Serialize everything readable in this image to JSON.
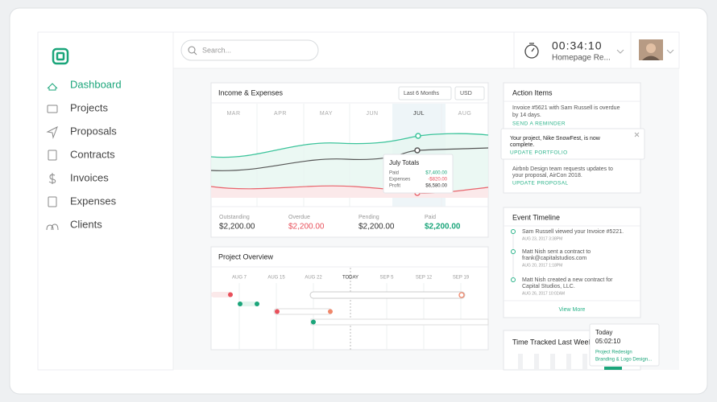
{
  "sidebar": {
    "nav": [
      "Dashboard",
      "Projects",
      "Proposals",
      "Contracts",
      "Invoices",
      "Expenses",
      "Clients"
    ]
  },
  "topbar": {
    "search_placeholder": "Search...",
    "timer": "00:34:10",
    "timer_project": "Homepage Re..."
  },
  "income_expenses": {
    "title": "Income & Expenses",
    "range": "Last 6 Months",
    "currency": "USD",
    "months": [
      "MAR",
      "APR",
      "MAY",
      "JUN",
      "JUL",
      "AUG"
    ],
    "tooltip": {
      "title": "July Totals",
      "rows": [
        {
          "label": "Paid",
          "value": "$7,400.00"
        },
        {
          "label": "Expenses",
          "value": "-$820.00"
        },
        {
          "label": "Profit",
          "value": "$6,580.00"
        }
      ]
    },
    "stats": [
      {
        "label": "Outstanding",
        "value": "$2,200.00"
      },
      {
        "label": "Overdue",
        "value": "$2,200.00"
      },
      {
        "label": "Pending",
        "value": "$2,200.00"
      },
      {
        "label": "Paid",
        "value": "$2,200.00"
      }
    ]
  },
  "project_overview": {
    "title": "Project Overview",
    "dates": [
      "AUG 7",
      "AUG 15",
      "AUG 22",
      "TODAY",
      "SEP 5",
      "SEP 12",
      "SEP 19"
    ]
  },
  "action_items": {
    "title": "Action Items",
    "items": [
      {
        "lines": [
          "Invoice #5621 with Sam Russell is overdue",
          "by 14 days."
        ],
        "action": "SEND A REMINDER"
      },
      {
        "lines": [
          "Your project, Nike SnowFest, is now",
          "complete."
        ],
        "action": "UPDATE PORTFOLIO"
      },
      {
        "lines": [
          "Airbnb Design team requests updates to",
          "your proposal, AirCon 2018."
        ],
        "action": "UPDATE PROPOSAL"
      }
    ]
  },
  "event_timeline": {
    "title": "Event Timeline",
    "events": [
      {
        "lines": [
          "Sam Russell viewed your Invoice #5221."
        ],
        "date": "AUG 23, 2017 3:38PM"
      },
      {
        "lines": [
          "Matt Nish sent a contract to",
          "frank@capitalstudios.com"
        ],
        "date": "AUG 20, 2017 1:18PM"
      },
      {
        "lines": [
          "Matt Nish created a new contract for",
          "Capital Studios, LLC."
        ],
        "date": "AUG 26, 2017 10:02AM"
      }
    ],
    "more": "View More"
  },
  "time_tracked": {
    "title": "Time Tracked Last Week",
    "popup": {
      "day": "Today",
      "time": "05:02:10",
      "projects": [
        "Project Redesign",
        "Branding & Logo Design..."
      ]
    }
  }
}
